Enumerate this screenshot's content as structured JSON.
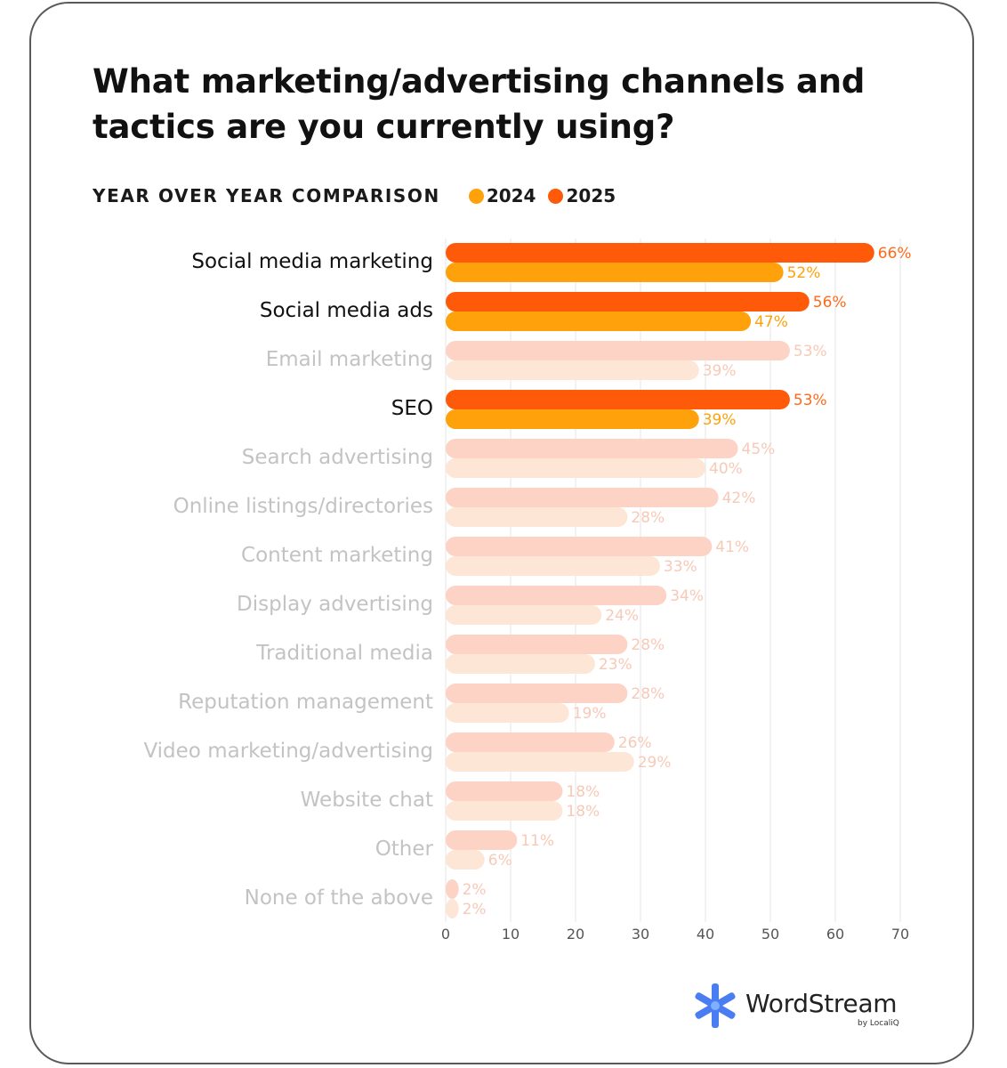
{
  "colors": {
    "y2025": "#ff5a0a",
    "y2024": "#ffa10a",
    "y2025_faded": "#fdd3c6",
    "y2024_faded": "#fde6d6",
    "label_active": "#111111",
    "label_faded": "#c3c3c3",
    "value_2025": "#ff6a1a",
    "value_2024": "#ffa10a",
    "value_faded": "#f7c9b7",
    "grid": "#e6e6e6"
  },
  "chart_data": {
    "type": "bar",
    "orientation": "horizontal",
    "title": "What marketing/advertising channels and tactics are you currently using?",
    "subtitle": "YEAR OVER YEAR COMPARISON",
    "legend": [
      {
        "name": "2024",
        "color": "#ffa10a"
      },
      {
        "name": "2025",
        "color": "#ff5a0a"
      }
    ],
    "categories": [
      "Social media marketing",
      "Social media ads",
      "Email marketing",
      "SEO",
      "Search advertising",
      "Online listings/directories",
      "Content marketing",
      "Display advertising",
      "Traditional media",
      "Reputation management",
      "Video marketing/advertising",
      "Website chat",
      "Other",
      "None of the above"
    ],
    "highlighted": [
      true,
      true,
      false,
      true,
      false,
      false,
      false,
      false,
      false,
      false,
      false,
      false,
      false,
      false
    ],
    "series": [
      {
        "name": "2025",
        "values": [
          66,
          56,
          53,
          53,
          45,
          42,
          41,
          34,
          28,
          28,
          26,
          18,
          11,
          2
        ]
      },
      {
        "name": "2024",
        "values": [
          52,
          47,
          39,
          39,
          40,
          28,
          33,
          24,
          23,
          19,
          29,
          18,
          6,
          2
        ]
      }
    ],
    "value_suffix": "%",
    "xlim": [
      0,
      70
    ],
    "xticks": [
      0,
      10,
      20,
      30,
      40,
      50,
      60,
      70
    ],
    "grid": true
  },
  "logo": {
    "brand": "WordStream",
    "sub": "by LocaliQ"
  }
}
